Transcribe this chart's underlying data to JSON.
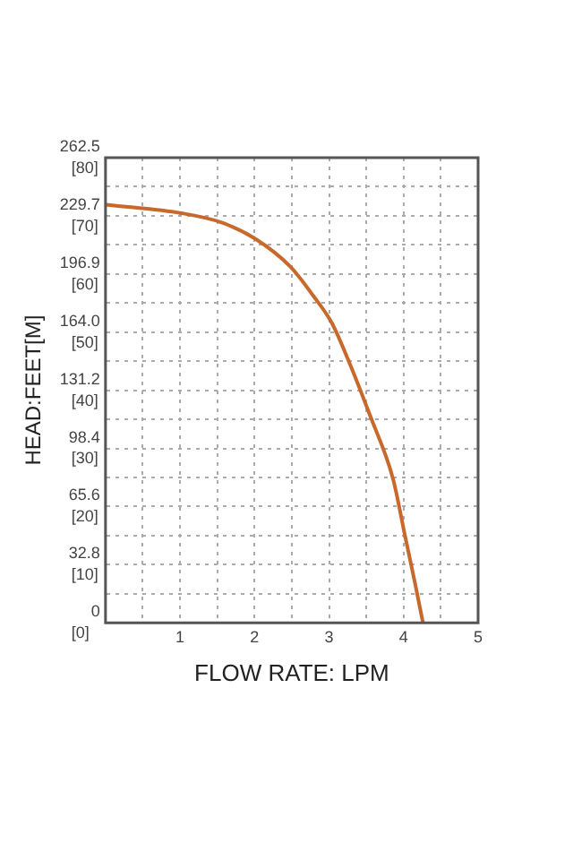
{
  "chart_data": {
    "type": "line",
    "xlabel": "FLOW RATE: LPM",
    "ylabel": "HEAD:FEET[M]",
    "x": [
      0,
      1.04,
      1.55,
      2.0,
      2.48,
      2.78,
      3.04,
      3.29,
      3.55,
      3.86,
      4.01,
      4.16,
      4.26
    ],
    "series": [
      {
        "color": "#c8682a",
        "values": [
          236,
          231,
          226,
          217,
          201,
          185,
          169,
          145,
          117,
          81,
          51,
          21,
          0
        ]
      }
    ],
    "xlim": [
      0,
      5
    ],
    "xticks": [
      {
        "value": 0,
        "label": null
      },
      {
        "value": 0.5,
        "label": null
      },
      1,
      {
        "value": 1.5,
        "label": null
      },
      2,
      {
        "value": 2.5,
        "label": null
      },
      3,
      {
        "value": 3.5,
        "label": null
      },
      4,
      {
        "value": 4.5,
        "label": null
      },
      5
    ],
    "ylim": [
      0,
      262.5
    ],
    "yticks": [
      0,
      {
        "value": 16.4,
        "label": null
      },
      32.8,
      {
        "value": 49.2,
        "label": null
      },
      65.6,
      {
        "value": 82,
        "label": null
      },
      98.4,
      {
        "value": 114.8,
        "label": null
      },
      131.2,
      {
        "value": 147.6,
        "label": null
      },
      {
        "value": 164,
        "label": "164.0"
      },
      {
        "value": 180.4,
        "label": null
      },
      196.9,
      {
        "value": 213.3,
        "label": null
      },
      229.7,
      {
        "value": 246.1,
        "label": null
      },
      262.5
    ],
    "y2lim": [
      0,
      80
    ],
    "y2ticks": [
      {
        "value": 0,
        "label": "[0]"
      },
      {
        "value": 10,
        "label": "[10]"
      },
      {
        "value": 20,
        "label": "[20]"
      },
      {
        "value": 30,
        "label": "[30]"
      },
      {
        "value": 40,
        "label": "[40]"
      },
      {
        "value": 50,
        "label": "[50]"
      },
      {
        "value": 60,
        "label": "[60]"
      },
      {
        "value": 70,
        "label": "[70]"
      },
      {
        "value": 80,
        "label": "[80]"
      }
    ],
    "grid": true,
    "legend": false,
    "marker": "none",
    "line_style": "solid"
  }
}
